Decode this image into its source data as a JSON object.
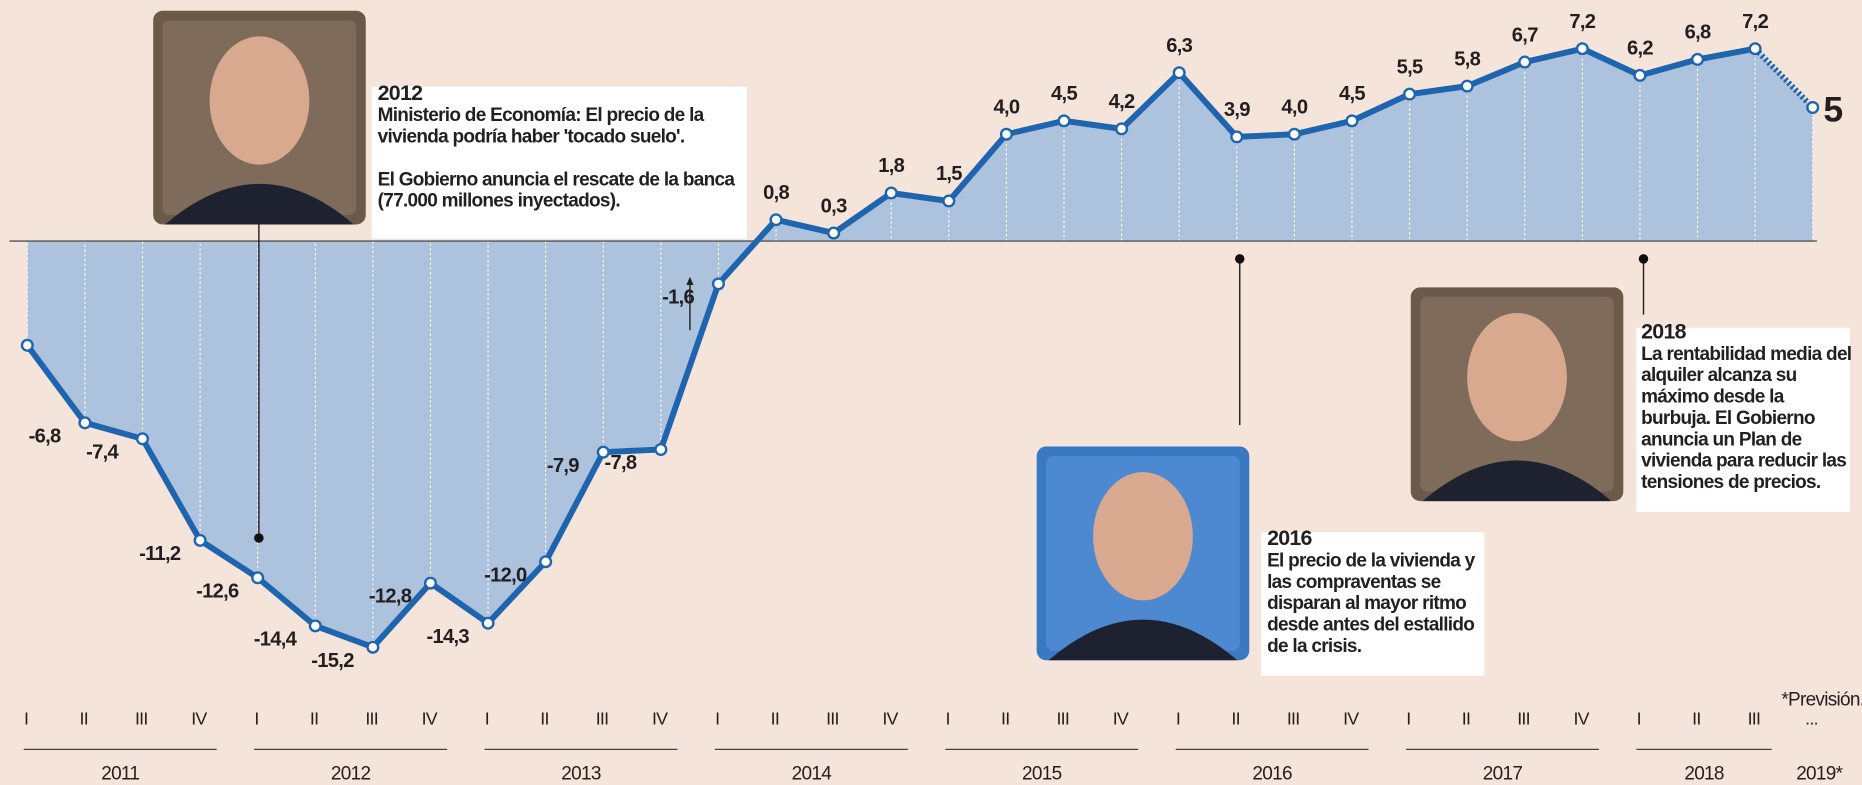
{
  "chart_data": {
    "type": "line",
    "categories": [
      "I",
      "II",
      "III",
      "IV",
      "I",
      "II",
      "III",
      "IV",
      "I",
      "II",
      "III",
      "IV",
      "I",
      "II",
      "III",
      "IV",
      "I",
      "II",
      "III",
      "IV",
      "I",
      "II",
      "III",
      "IV",
      "I",
      "II",
      "III",
      "IV",
      "I",
      "II",
      "III",
      "..."
    ],
    "years": [
      "2011",
      "2012",
      "2013",
      "2014",
      "2015",
      "2016",
      "2017",
      "2018",
      "2019*"
    ],
    "values": [
      -3.9,
      -6.8,
      -7.4,
      -11.2,
      -12.6,
      -14.4,
      -15.2,
      -12.8,
      -14.3,
      -12.0,
      -7.9,
      -7.8,
      -1.6,
      0.8,
      0.3,
      1.8,
      1.5,
      4.0,
      4.5,
      4.2,
      6.3,
      3.9,
      4.0,
      4.5,
      5.5,
      5.8,
      6.7,
      7.2,
      6.2,
      6.8,
      7.2,
      5
    ],
    "value_labels": [
      null,
      "-6,8",
      "-7,4",
      "-11,2",
      "-12,6",
      "-14,4",
      "-15,2",
      "-12,8",
      "-14,3",
      "-12,0",
      "-7,9",
      "-7,8",
      "-1,6",
      "0,8",
      "0,3",
      "1,8",
      "1,5",
      "4,0",
      "4,5",
      "4,2",
      "6,3",
      "3,9",
      "4,0",
      "4,5",
      "5,5",
      "5,8",
      "6,7",
      "7,2",
      "6,2",
      "6,8",
      "7,2",
      "5"
    ],
    "color": "#1e64ae",
    "area_color": "#adc2dc",
    "ylim": [
      -16,
      8
    ],
    "note": "*Previsión.",
    "annotations": [
      {
        "year": "2012",
        "paragraphs": [
          [
            "Ministerio de  Economía: El precio de la",
            "vivienda podría haber 'tocado suelo'."
          ],
          [
            "El Gobierno anuncia el rescate de la banca",
            "(77.000 millones inyectados)."
          ]
        ]
      },
      {
        "year": "2016",
        "paragraphs": [
          [
            "El precio de la vivienda y",
            "las compraventas se",
            "disparan al mayor ritmo",
            "desde antes del estallido",
            "de la crisis."
          ]
        ]
      },
      {
        "year": "2018",
        "paragraphs": [
          [
            "La rentabilidad media del",
            "alquiler alcanza su",
            "máximo desde la",
            "burbuja. El Gobierno",
            "anuncia un Plan de",
            "vivienda para reducir las",
            "tensiones de precios."
          ]
        ]
      }
    ]
  }
}
